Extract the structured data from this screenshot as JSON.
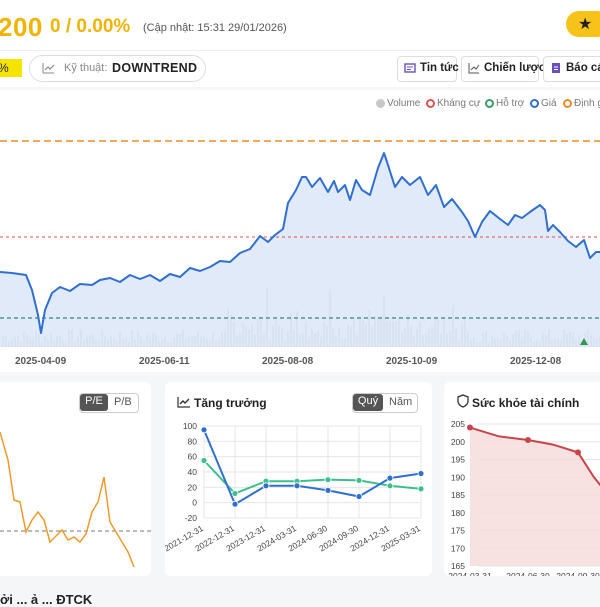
{
  "header": {
    "price": "200",
    "change": "0 / 0.00%",
    "updated": "(Cập nhật: 15:31 29/01/2026)",
    "star_icon": "star-icon"
  },
  "tabs": {
    "pct_badge": "%",
    "tech_label": "Kỹ thuật:",
    "tech_value": "DOWNTREND",
    "news_label": "Tin tức",
    "strategy_label": "Chiến lược",
    "report_label": "Báo các"
  },
  "legend": {
    "volume": "Volume",
    "resistance": "Kháng cự",
    "support": "Hỗ trợ",
    "price": "Giá",
    "valuation": "Định g"
  },
  "colors": {
    "price_line": "#2f6fcf",
    "resistance": "#d9534f",
    "support": "#2c8a8a",
    "valuation": "#ef8a22",
    "volume": "#c8c8c8",
    "growth_a": "#2f6fcf",
    "growth_b": "#3cbf8a",
    "pe_line": "#ef9a2a",
    "health": "#c8444b",
    "accent": "#f7c21a"
  },
  "main_chart": {
    "x_labels": [
      "2025-04-09",
      "2025-06-11",
      "2025-08-08",
      "2025-10-09",
      "2025-12-08"
    ]
  },
  "pe_panel": {
    "tab_pe": "P/E",
    "tab_pb": "P/B"
  },
  "growth_panel": {
    "title": "Tăng trưởng",
    "tab_quarter": "Quý",
    "tab_year": "Năm",
    "chart_data": {
      "type": "line",
      "categories": [
        "2021-12-31",
        "2022-12-31",
        "2023-12-31",
        "2024-03-31",
        "2024-06-30",
        "2024-09-30",
        "2024-12-31",
        "2025-03-31"
      ],
      "ylim": [
        -20,
        100
      ],
      "y_ticks": [
        "100",
        "80",
        "60",
        "40",
        "20",
        "0",
        "-20"
      ],
      "series": [
        {
          "values": [
            95,
            -2,
            22,
            22,
            16,
            8,
            32,
            38
          ]
        },
        {
          "values": [
            55,
            12,
            28,
            28,
            30,
            29,
            22,
            18
          ]
        }
      ]
    }
  },
  "health_panel": {
    "title": "Sức khỏe tài chính",
    "chart_data": {
      "type": "area",
      "categories": [
        "2024-03-31",
        "2024-06-30",
        "2024-09-30"
      ],
      "ylim": [
        165,
        205
      ],
      "y_ticks": [
        "205",
        "200",
        "195",
        "190",
        "185",
        "180",
        "175",
        "170",
        "165"
      ],
      "values": [
        204,
        200.5,
        197
      ]
    }
  },
  "footer": {
    "text": "ởi ... ả ... ĐTCK"
  }
}
